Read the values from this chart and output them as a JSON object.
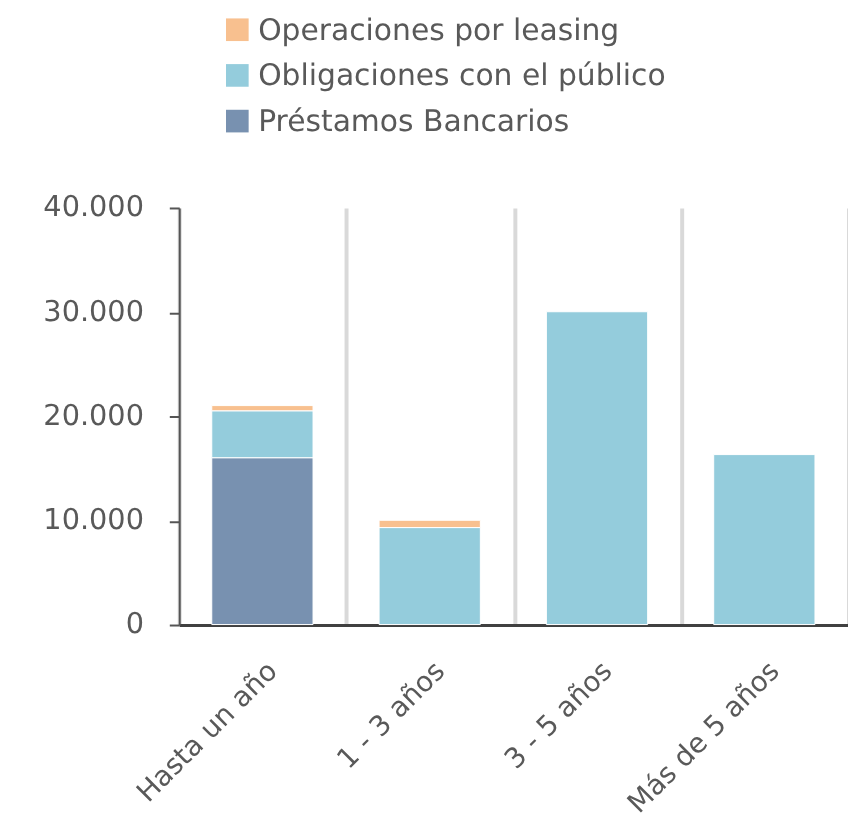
{
  "chart_data": {
    "type": "bar",
    "stacked": true,
    "categories": [
      "Hasta un año",
      "1 - 3 años",
      "3 - 5 años",
      "Más de 5 años"
    ],
    "series": [
      {
        "name": "Préstamos Bancarios",
        "color": "#7891b0",
        "values": [
          16000,
          null,
          null,
          null
        ]
      },
      {
        "name": "Obligaciones con el público",
        "color": "#94ccdc",
        "values": [
          4500,
          9300,
          30000,
          16300
        ]
      },
      {
        "name": "Operaciones por leasing",
        "color": "#f8c08f",
        "values": [
          500,
          700,
          null,
          null
        ]
      }
    ],
    "ylim": [
      0,
      40000
    ],
    "yticks": [
      0,
      {
        "value": 10000,
        "label": "10.000"
      },
      {
        "value": 20000,
        "label": "20.000"
      },
      {
        "value": 30000,
        "label": "30.000"
      },
      {
        "value": 40000,
        "label": "40.000"
      }
    ],
    "grid": "x",
    "legend": "top"
  }
}
